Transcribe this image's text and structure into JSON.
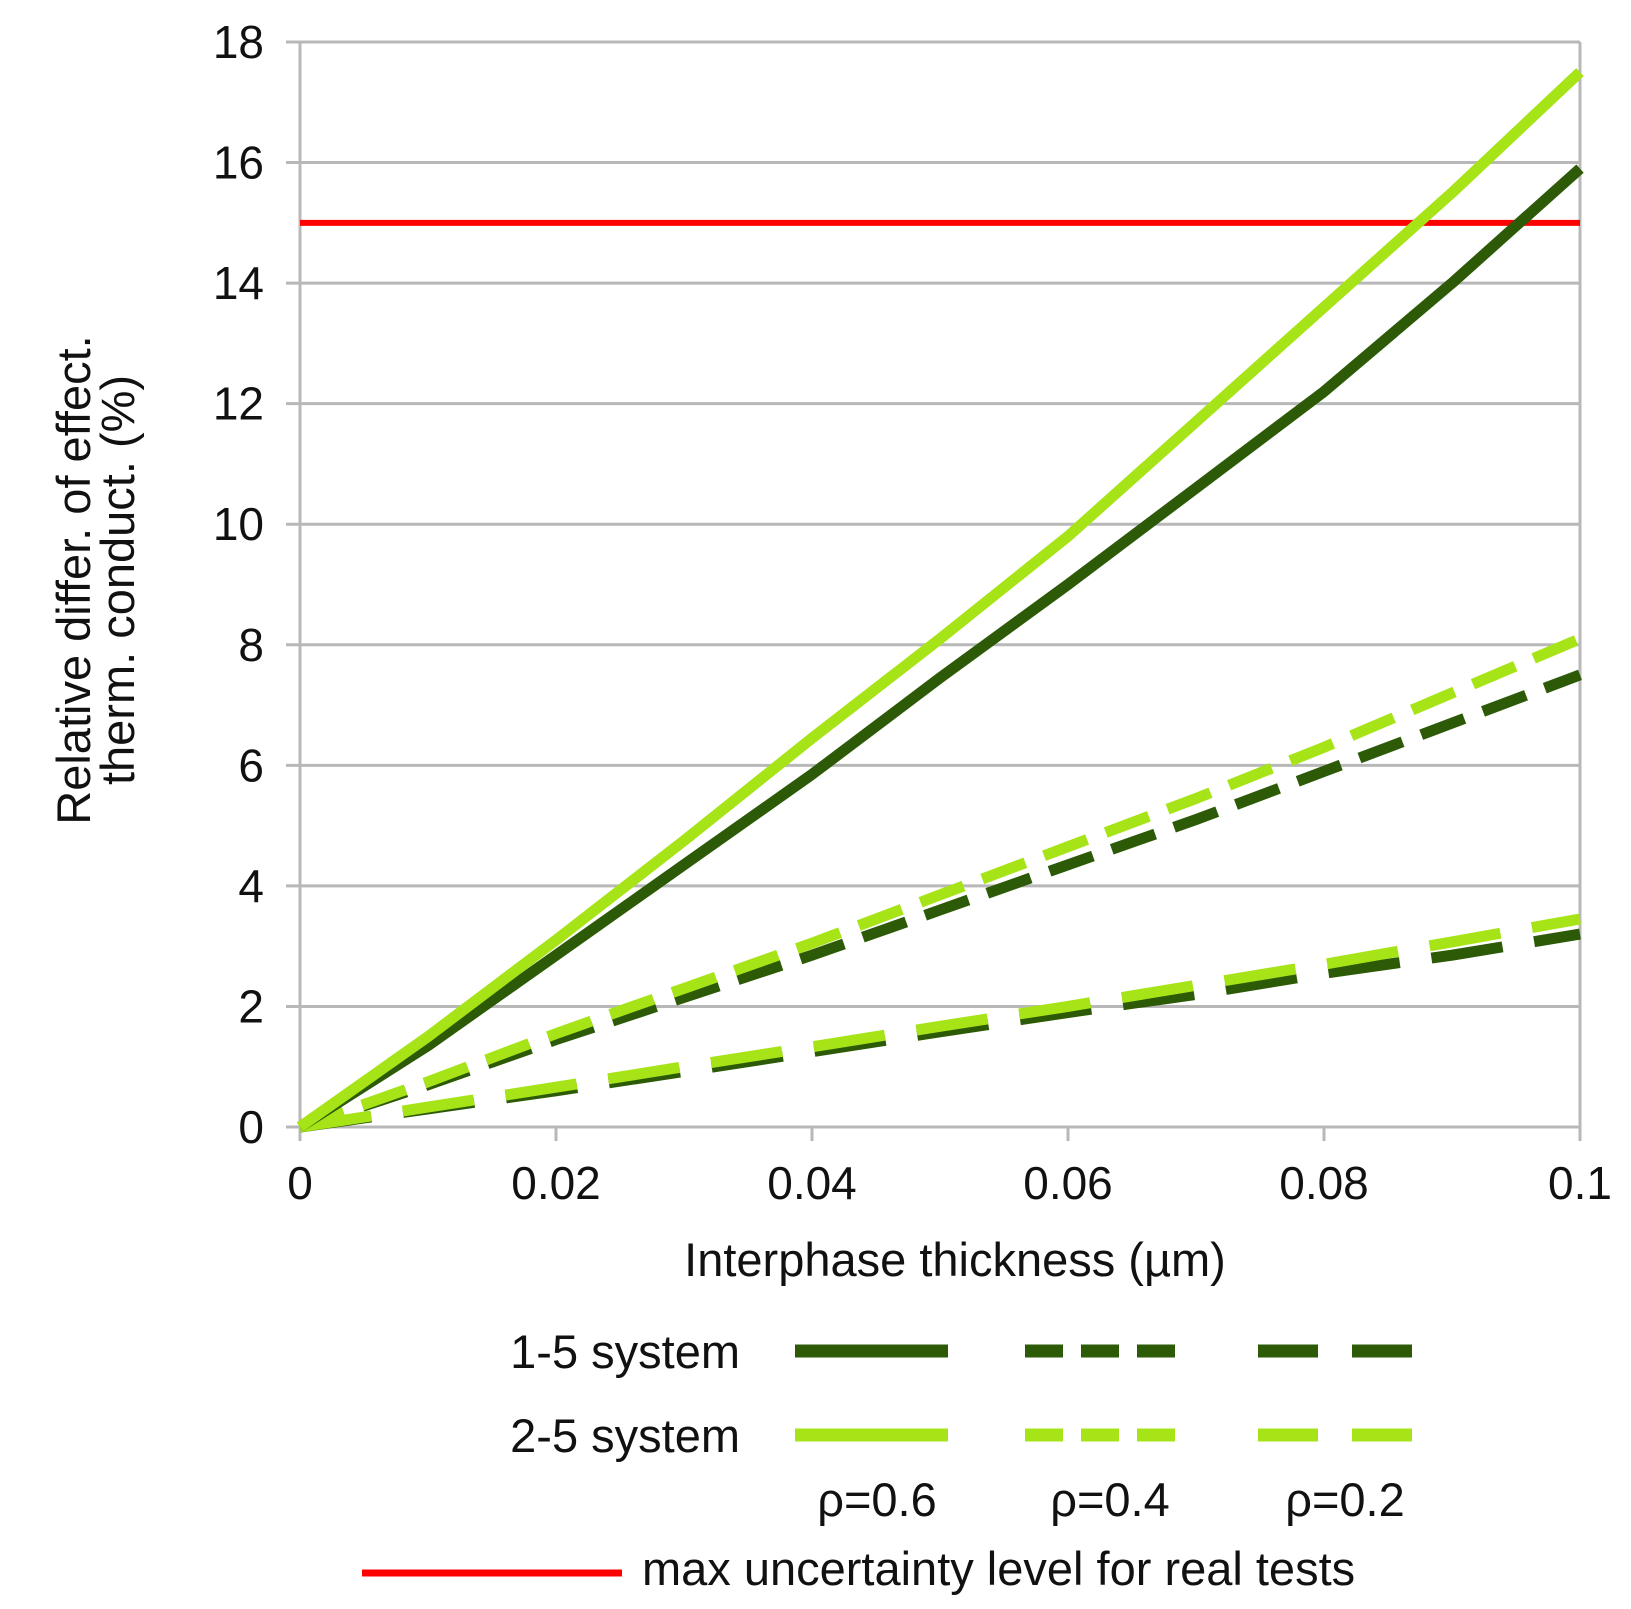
{
  "chart_data": {
    "type": "line",
    "title": "",
    "xlabel": "Interphase thickness (µm)",
    "ylabel_line1": "Relative differ. of effect.",
    "ylabel_line2": "therm. conduct. (%)",
    "xlim": [
      0,
      0.1
    ],
    "ylim": [
      0,
      18
    ],
    "xticks": [
      "0",
      "0.02",
      "0.04",
      "0.06",
      "0.08",
      "0.1"
    ],
    "xtick_values": [
      0,
      0.02,
      0.04,
      0.06,
      0.08,
      0.1
    ],
    "yticks": [
      "0",
      "2",
      "4",
      "6",
      "8",
      "10",
      "12",
      "14",
      "16",
      "18"
    ],
    "ytick_values": [
      0,
      2,
      4,
      6,
      8,
      10,
      12,
      14,
      16,
      18
    ],
    "grid": true,
    "x": [
      0,
      0.01,
      0.02,
      0.03,
      0.04,
      0.05,
      0.06,
      0.07,
      0.08,
      0.09,
      0.1
    ],
    "colors": {
      "dark": "#2d5a07",
      "light": "#a6e417",
      "red": "#ff0000",
      "grid": "#b8b8b8"
    },
    "series": [
      {
        "name": "1-5 system ρ=0.6",
        "system": "1-5",
        "rho": "0.6",
        "color": "#2d5a07",
        "dash": "solid",
        "values": [
          0,
          1.35,
          2.85,
          4.35,
          5.85,
          7.45,
          9.0,
          10.6,
          12.2,
          14.0,
          15.9
        ]
      },
      {
        "name": "2-5 system ρ=0.6",
        "system": "2-5",
        "rho": "0.6",
        "color": "#a6e417",
        "dash": "solid",
        "values": [
          0,
          1.5,
          3.1,
          4.75,
          6.45,
          8.1,
          9.8,
          11.7,
          13.6,
          15.5,
          17.5
        ]
      },
      {
        "name": "1-5 system ρ=0.4",
        "system": "1-5",
        "rho": "0.4",
        "color": "#2d5a07",
        "dash": "medium",
        "values": [
          0,
          0.7,
          1.45,
          2.15,
          2.85,
          3.6,
          4.35,
          5.1,
          5.9,
          6.7,
          7.5
        ]
      },
      {
        "name": "2-5 system ρ=0.4",
        "system": "2-5",
        "rho": "0.4",
        "color": "#a6e417",
        "dash": "medium",
        "values": [
          0,
          0.75,
          1.55,
          2.3,
          3.05,
          3.85,
          4.65,
          5.45,
          6.3,
          7.2,
          8.1
        ]
      },
      {
        "name": "1-5 system ρ=0.2",
        "system": "1-5",
        "rho": "0.2",
        "color": "#2d5a07",
        "dash": "long",
        "values": [
          0,
          0.3,
          0.6,
          0.92,
          1.25,
          1.58,
          1.9,
          2.2,
          2.55,
          2.85,
          3.2
        ]
      },
      {
        "name": "2-5 system ρ=0.2",
        "system": "2-5",
        "rho": "0.2",
        "color": "#a6e417",
        "dash": "long",
        "values": [
          0,
          0.33,
          0.66,
          1.0,
          1.33,
          1.67,
          2.0,
          2.35,
          2.7,
          3.07,
          3.45
        ]
      }
    ],
    "reference_line": {
      "name": "max uncertainty level for real tests",
      "value": 15,
      "color": "#ff0000"
    },
    "legend": {
      "rows": [
        {
          "label": "1-5 system",
          "color": "#2d5a07"
        },
        {
          "label": "2-5 system",
          "color": "#a6e417"
        }
      ],
      "columns": [
        {
          "label": "ρ=0.6",
          "dash": "solid"
        },
        {
          "label": "ρ=0.4",
          "dash": "medium"
        },
        {
          "label": "ρ=0.2",
          "dash": "long"
        }
      ],
      "reference_label": "max uncertainty level for real tests"
    }
  }
}
